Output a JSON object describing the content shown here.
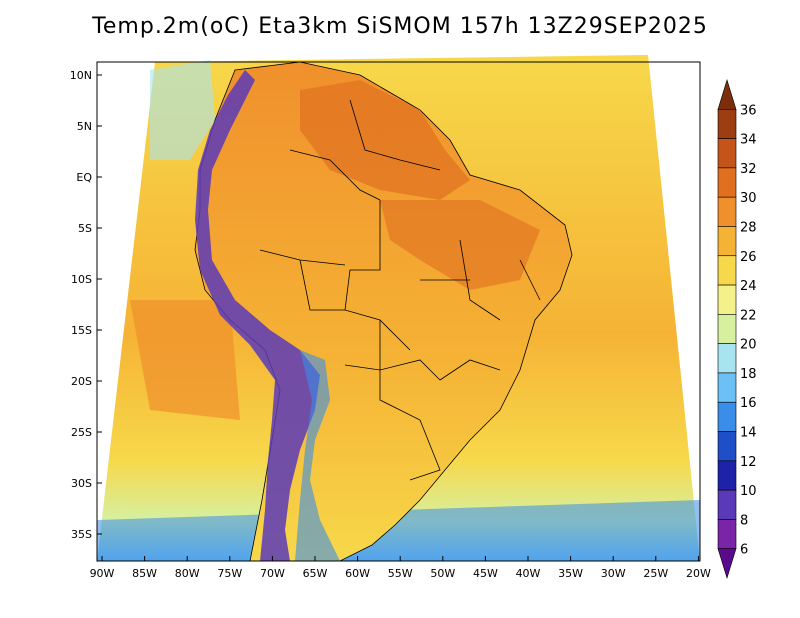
{
  "title": "Temp.2m(oC) Eta3km SiSMOM 157h 13Z29SEP2025",
  "lat_labels": [
    "10N",
    "5N",
    "EQ",
    "5S",
    "10S",
    "15S",
    "20S",
    "25S",
    "30S",
    "35S"
  ],
  "lon_labels": [
    "90W",
    "85W",
    "80W",
    "75W",
    "70W",
    "65W",
    "60W",
    "55W",
    "50W",
    "45W",
    "40W",
    "35W",
    "30W",
    "25W",
    "20W"
  ],
  "colorbar": {
    "labels": [
      "36",
      "34",
      "32",
      "30",
      "28",
      "26",
      "24",
      "22",
      "20",
      "18",
      "16",
      "14",
      "12",
      "10",
      "8",
      "6"
    ],
    "colors": [
      "#7a2e0c",
      "#9c3d12",
      "#c4541a",
      "#e0701f",
      "#f0902c",
      "#f5b335",
      "#f7d84a",
      "#f4f08a",
      "#d6f0a0",
      "#a8e4f0",
      "#6cc0f5",
      "#3a8de8",
      "#1f4fc8",
      "#1e22a8",
      "#5a3ab8",
      "#7a24a8",
      "#5a0a8a"
    ]
  }
}
